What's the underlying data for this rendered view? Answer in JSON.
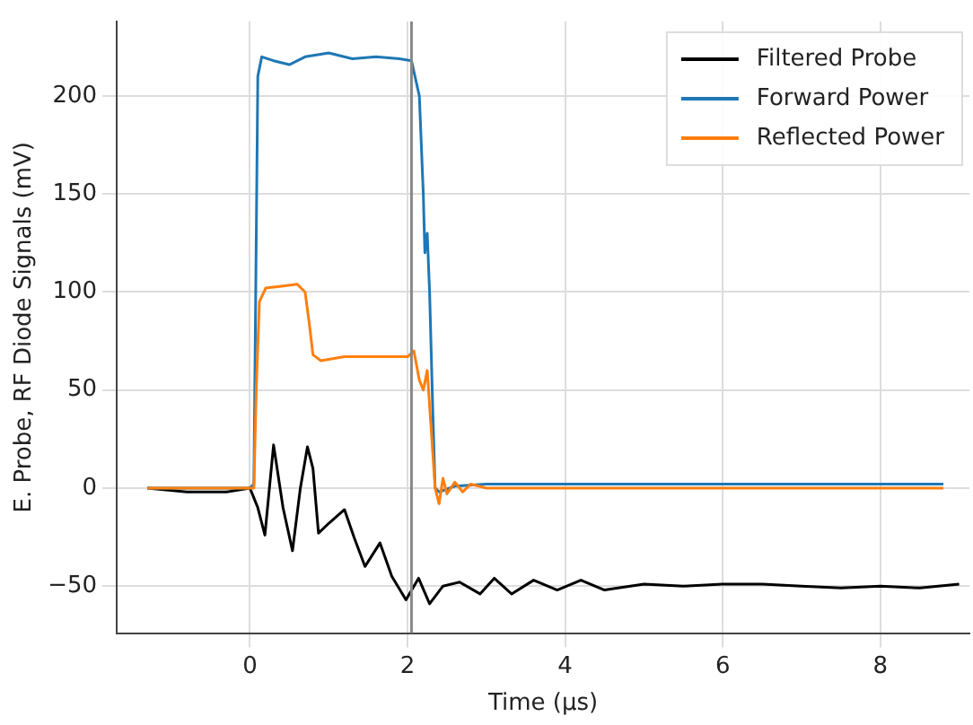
{
  "chart_data": {
    "type": "line",
    "xlabel": "Time (μs)",
    "ylabel": "E. Probe, RF Diode Signals (mV)",
    "xlim": [
      -1.69,
      9.13
    ],
    "ylim": [
      -74,
      238
    ],
    "xticks": [
      0,
      2,
      4,
      6,
      8
    ],
    "yticks": [
      -50,
      0,
      50,
      100,
      150,
      200
    ],
    "grid": true,
    "legend": "top right",
    "marker": "none",
    "line_style": "solid",
    "ref_lines": [
      {
        "axis": "x",
        "value": 2.05,
        "color": "#888888"
      }
    ],
    "series": [
      {
        "name": "Filtered Probe",
        "color": "#000000",
        "x": [
          -1.3,
          -0.8,
          -0.3,
          0,
          0.05,
          0.1,
          0.19,
          0.3,
          0.42,
          0.54,
          0.64,
          0.73,
          0.8,
          0.87,
          1.0,
          1.2,
          1.32,
          1.46,
          1.65,
          1.8,
          1.98,
          2.14,
          2.28,
          2.45,
          2.66,
          2.92,
          3.1,
          3.32,
          3.6,
          3.9,
          4.2,
          4.5,
          5,
          5.5,
          6,
          6.5,
          7,
          7.5,
          8,
          8.5,
          9.0
        ],
        "values": [
          0,
          -2,
          -2,
          0,
          -5,
          -10,
          -24,
          22,
          -10,
          -32,
          0,
          21,
          10,
          -23,
          -18,
          -11,
          -25,
          -40,
          -28,
          -45,
          -57,
          -46,
          -59,
          -50,
          -48,
          -54,
          -46,
          -54,
          -47,
          -52,
          -47,
          -52,
          -49,
          -50,
          -49,
          -49,
          -50,
          -51,
          -50,
          -51,
          -49
        ]
      },
      {
        "name": "Forward Power",
        "color": "#1f77b4",
        "x": [
          -1.3,
          0,
          0.05,
          0.1,
          0.15,
          0.3,
          0.5,
          0.7,
          1.0,
          1.3,
          1.6,
          1.9,
          2.05,
          2.15,
          2.2,
          2.22,
          2.25,
          2.28,
          2.32,
          2.35,
          2.4,
          2.6,
          3,
          5,
          7,
          8.8
        ],
        "values": [
          0,
          0,
          2,
          210,
          220,
          218,
          216,
          220,
          222,
          219,
          220,
          219,
          218,
          200,
          150,
          120,
          130,
          100,
          40,
          0,
          -2,
          1,
          2,
          2,
          2,
          2
        ]
      },
      {
        "name": "Reflected Power",
        "color": "#ff7f0e",
        "x": [
          -1.3,
          0,
          0.05,
          0.08,
          0.12,
          0.2,
          0.4,
          0.6,
          0.7,
          0.75,
          0.8,
          0.9,
          1.2,
          1.6,
          2.0,
          2.08,
          2.15,
          2.2,
          2.25,
          2.3,
          2.35,
          2.4,
          2.45,
          2.5,
          2.6,
          2.7,
          2.8,
          3.0,
          5,
          7,
          8.8
        ],
        "values": [
          0,
          0,
          0,
          50,
          95,
          102,
          103,
          104,
          100,
          85,
          68,
          65,
          67,
          67,
          67,
          70,
          55,
          50,
          60,
          30,
          0,
          -8,
          5,
          -3,
          3,
          -2,
          2,
          0,
          0,
          0,
          0
        ]
      }
    ]
  }
}
